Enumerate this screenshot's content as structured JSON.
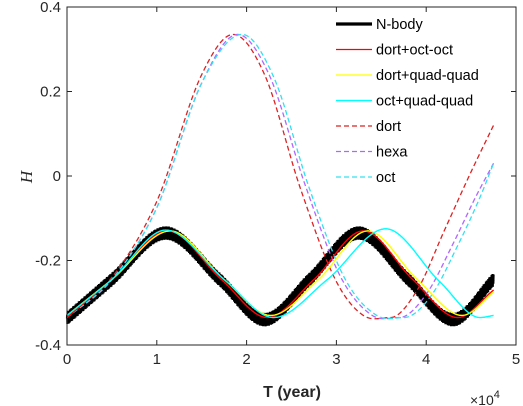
{
  "chart_data": {
    "type": "line",
    "xlabel": "T (year)",
    "ylabel": "H",
    "x_multiplier_label": "×10",
    "x_multiplier_exponent": "4",
    "xlim": [
      0,
      5
    ],
    "ylim": [
      -0.4,
      0.4
    ],
    "xticks": [
      "0",
      "1",
      "2",
      "3",
      "4",
      "5"
    ],
    "yticks": [
      "-0.4",
      "-0.2",
      "0",
      "0.2",
      "0.4"
    ],
    "x_max_data": 4.75,
    "legend_position": "top-right",
    "series": [
      {
        "name": "N-body",
        "color": "#000000",
        "style": "solid",
        "width": 3.2,
        "x": [
          0,
          0.5,
          1.1,
          1.7,
          2.2,
          2.7,
          3.25,
          3.8,
          4.3,
          4.75
        ],
        "y": [
          -0.337,
          -0.245,
          -0.135,
          -0.245,
          -0.34,
          -0.245,
          -0.135,
          -0.245,
          -0.34,
          -0.245
        ],
        "oscillation_amplitude": 0.016
      },
      {
        "name": "dort+oct-oct",
        "color": "#ff0000",
        "style": "solid",
        "width": 1.3,
        "x": [
          0,
          0.5,
          1.12,
          1.72,
          2.23,
          2.75,
          3.3,
          3.85,
          4.35,
          4.75
        ],
        "y": [
          -0.335,
          -0.245,
          -0.13,
          -0.245,
          -0.335,
          -0.245,
          -0.13,
          -0.245,
          -0.335,
          -0.27
        ]
      },
      {
        "name": "dort+quad-quad",
        "color": "#ffff00",
        "style": "solid",
        "width": 1.3,
        "x": [
          0,
          0.5,
          1.15,
          1.75,
          2.27,
          2.8,
          3.35,
          3.9,
          4.4,
          4.75
        ],
        "y": [
          -0.33,
          -0.245,
          -0.13,
          -0.245,
          -0.33,
          -0.245,
          -0.13,
          -0.245,
          -0.33,
          -0.275
        ]
      },
      {
        "name": "oct+quad-quad",
        "color": "#00ffff",
        "style": "solid",
        "width": 1.3,
        "x": [
          0,
          0.5,
          1.1,
          1.75,
          2.3,
          2.9,
          3.55,
          4.15,
          4.6,
          4.75
        ],
        "y": [
          -0.33,
          -0.245,
          -0.128,
          -0.245,
          -0.335,
          -0.245,
          -0.125,
          -0.25,
          -0.335,
          -0.33
        ]
      },
      {
        "name": "dort",
        "color": "#dd2222",
        "style": "dashed",
        "width": 1.3,
        "x": [
          0,
          0.5,
          1.0,
          1.5,
          1.85,
          2.2,
          2.6,
          3.0,
          3.3,
          3.6,
          3.9,
          4.2,
          4.5,
          4.75
        ],
        "y": [
          -0.335,
          -0.24,
          -0.06,
          0.24,
          0.335,
          0.24,
          -0.03,
          -0.25,
          -0.33,
          -0.335,
          -0.27,
          -0.13,
          0.01,
          0.12
        ]
      },
      {
        "name": "hexa",
        "color": "#b266ff",
        "style": "dashed",
        "width": 1.3,
        "x": [
          0,
          0.5,
          1.0,
          1.5,
          1.9,
          2.25,
          2.65,
          3.05,
          3.4,
          3.7,
          4.0,
          4.3,
          4.55,
          4.75
        ],
        "y": [
          -0.335,
          -0.245,
          -0.075,
          0.22,
          0.335,
          0.24,
          -0.02,
          -0.24,
          -0.33,
          -0.335,
          -0.28,
          -0.16,
          -0.05,
          0.03
        ]
      },
      {
        "name": "oct",
        "color": "#33e0f0",
        "style": "dashed",
        "width": 1.3,
        "x": [
          0,
          0.5,
          1.0,
          1.5,
          1.95,
          2.3,
          2.7,
          3.1,
          3.45,
          3.75,
          4.05,
          4.35,
          4.6,
          4.75
        ],
        "y": [
          -0.335,
          -0.245,
          -0.075,
          0.22,
          0.335,
          0.235,
          -0.03,
          -0.245,
          -0.33,
          -0.335,
          -0.285,
          -0.165,
          -0.05,
          0.03
        ]
      }
    ]
  }
}
